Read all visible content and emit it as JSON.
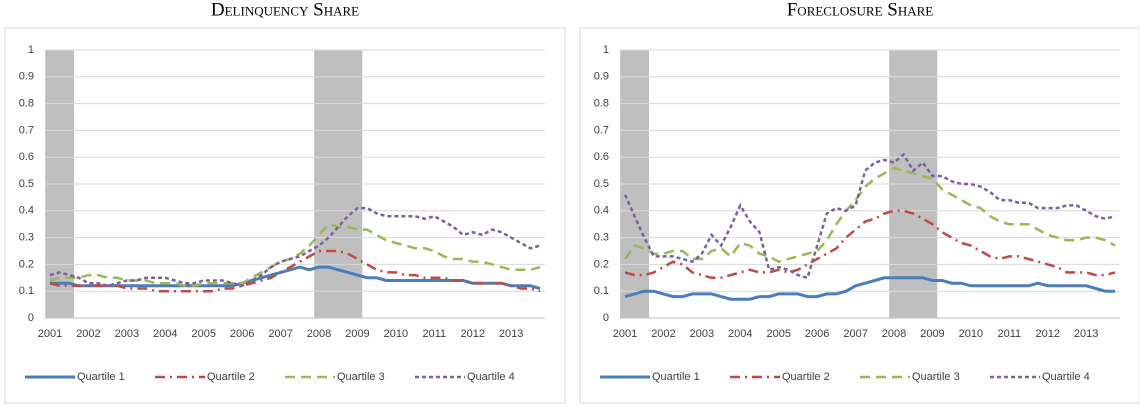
{
  "chart_data": [
    {
      "type": "line",
      "title": "Delinquency Share",
      "categories": [
        "2001",
        null,
        null,
        null,
        "2002",
        null,
        null,
        null,
        "2003",
        null,
        null,
        null,
        "2004",
        null,
        null,
        null,
        "2005",
        null,
        null,
        null,
        "2006",
        null,
        null,
        null,
        "2007",
        null,
        null,
        null,
        "2008",
        null,
        null,
        null,
        "2009",
        null,
        null,
        null,
        "2010",
        null,
        null,
        null,
        "2011",
        null,
        null,
        null,
        "2012",
        null,
        null,
        null,
        "2013",
        null,
        null,
        null
      ],
      "ylim": [
        0,
        1
      ],
      "yticks": [
        0,
        0.1,
        0.2,
        0.3,
        0.4,
        0.5,
        0.6,
        0.7,
        0.8,
        0.9,
        1
      ],
      "grid": true,
      "shaded": [
        {
          "start": 0,
          "end": 2
        },
        {
          "start": 28,
          "end": 32
        }
      ],
      "series": [
        {
          "name": "Quartile 1",
          "color": "#4a7ebb",
          "dash": "solid",
          "values": [
            0.13,
            0.13,
            0.13,
            0.12,
            0.12,
            0.12,
            0.12,
            0.12,
            0.12,
            0.12,
            0.12,
            0.12,
            0.12,
            0.12,
            0.12,
            0.12,
            0.12,
            0.12,
            0.12,
            0.12,
            0.13,
            0.14,
            0.15,
            0.16,
            0.17,
            0.18,
            0.19,
            0.18,
            0.19,
            0.19,
            0.18,
            0.17,
            0.16,
            0.15,
            0.15,
            0.14,
            0.14,
            0.14,
            0.14,
            0.14,
            0.14,
            0.14,
            0.14,
            0.14,
            0.13,
            0.13,
            0.13,
            0.13,
            0.12,
            0.12,
            0.12,
            0.11
          ]
        },
        {
          "name": "Quartile 2",
          "color": "#be4b48",
          "dash": "dashdot",
          "values": [
            0.13,
            0.12,
            0.12,
            0.12,
            0.12,
            0.12,
            0.12,
            0.12,
            0.11,
            0.11,
            0.11,
            0.1,
            0.1,
            0.1,
            0.1,
            0.1,
            0.1,
            0.1,
            0.11,
            0.11,
            0.12,
            0.13,
            0.14,
            0.15,
            0.17,
            0.19,
            0.21,
            0.23,
            0.25,
            0.25,
            0.25,
            0.24,
            0.22,
            0.2,
            0.18,
            0.17,
            0.17,
            0.16,
            0.16,
            0.15,
            0.15,
            0.15,
            0.14,
            0.14,
            0.13,
            0.13,
            0.13,
            0.13,
            0.12,
            0.11,
            0.11,
            0.1
          ]
        },
        {
          "name": "Quartile 3",
          "color": "#98b954",
          "dash": "longdash",
          "values": [
            0.14,
            0.15,
            0.15,
            0.15,
            0.16,
            0.16,
            0.15,
            0.15,
            0.14,
            0.14,
            0.14,
            0.13,
            0.13,
            0.13,
            0.12,
            0.12,
            0.13,
            0.13,
            0.13,
            0.13,
            0.13,
            0.15,
            0.17,
            0.19,
            0.21,
            0.22,
            0.24,
            0.27,
            0.31,
            0.35,
            0.34,
            0.34,
            0.33,
            0.33,
            0.31,
            0.29,
            0.28,
            0.27,
            0.26,
            0.26,
            0.25,
            0.23,
            0.22,
            0.22,
            0.21,
            0.21,
            0.2,
            0.19,
            0.18,
            0.18,
            0.18,
            0.19
          ]
        },
        {
          "name": "Quartile 4",
          "color": "#7d60a0",
          "dash": "shortdash",
          "values": [
            0.16,
            0.17,
            0.16,
            0.15,
            0.13,
            0.13,
            0.12,
            0.13,
            0.14,
            0.14,
            0.15,
            0.15,
            0.15,
            0.14,
            0.13,
            0.13,
            0.14,
            0.14,
            0.14,
            0.13,
            0.12,
            0.14,
            0.16,
            0.19,
            0.21,
            0.22,
            0.23,
            0.25,
            0.27,
            0.3,
            0.34,
            0.38,
            0.41,
            0.41,
            0.39,
            0.38,
            0.38,
            0.38,
            0.38,
            0.37,
            0.38,
            0.36,
            0.34,
            0.31,
            0.32,
            0.31,
            0.33,
            0.32,
            0.3,
            0.28,
            0.26,
            0.27
          ]
        }
      ]
    },
    {
      "type": "line",
      "title": "Foreclosure Share",
      "categories": [
        "2001",
        null,
        null,
        null,
        "2002",
        null,
        null,
        null,
        "2003",
        null,
        null,
        null,
        "2004",
        null,
        null,
        null,
        "2005",
        null,
        null,
        null,
        "2006",
        null,
        null,
        null,
        "2007",
        null,
        null,
        null,
        "2008",
        null,
        null,
        null,
        "2009",
        null,
        null,
        null,
        "2010",
        null,
        null,
        null,
        "2011",
        null,
        null,
        null,
        "2012",
        null,
        null,
        null,
        "2013",
        null,
        null,
        null
      ],
      "ylim": [
        0,
        1
      ],
      "yticks": [
        0,
        0.1,
        0.2,
        0.3,
        0.4,
        0.5,
        0.6,
        0.7,
        0.8,
        0.9,
        1
      ],
      "grid": true,
      "shaded": [
        {
          "start": 0,
          "end": 2
        },
        {
          "start": 28,
          "end": 32
        }
      ],
      "series": [
        {
          "name": "Quartile 1",
          "color": "#4a7ebb",
          "dash": "solid",
          "values": [
            0.08,
            0.09,
            0.1,
            0.1,
            0.09,
            0.08,
            0.08,
            0.09,
            0.09,
            0.09,
            0.08,
            0.07,
            0.07,
            0.07,
            0.08,
            0.08,
            0.09,
            0.09,
            0.09,
            0.08,
            0.08,
            0.09,
            0.09,
            0.1,
            0.12,
            0.13,
            0.14,
            0.15,
            0.15,
            0.15,
            0.15,
            0.15,
            0.14,
            0.14,
            0.13,
            0.13,
            0.12,
            0.12,
            0.12,
            0.12,
            0.12,
            0.12,
            0.12,
            0.13,
            0.12,
            0.12,
            0.12,
            0.12,
            0.12,
            0.11,
            0.1,
            0.1
          ]
        },
        {
          "name": "Quartile 2",
          "color": "#be4b48",
          "dash": "dashdot",
          "values": [
            0.17,
            0.16,
            0.16,
            0.17,
            0.19,
            0.21,
            0.2,
            0.17,
            0.16,
            0.15,
            0.15,
            0.16,
            0.17,
            0.18,
            0.17,
            0.17,
            0.18,
            0.17,
            0.18,
            0.2,
            0.22,
            0.24,
            0.26,
            0.3,
            0.33,
            0.36,
            0.37,
            0.39,
            0.4,
            0.4,
            0.39,
            0.37,
            0.35,
            0.32,
            0.3,
            0.28,
            0.27,
            0.25,
            0.23,
            0.22,
            0.23,
            0.23,
            0.22,
            0.21,
            0.2,
            0.19,
            0.17,
            0.17,
            0.17,
            0.16,
            0.16,
            0.17
          ]
        },
        {
          "name": "Quartile 3",
          "color": "#98b954",
          "dash": "longdash",
          "values": [
            0.22,
            0.27,
            0.26,
            0.24,
            0.24,
            0.25,
            0.25,
            0.22,
            0.22,
            0.25,
            0.26,
            0.23,
            0.28,
            0.27,
            0.24,
            0.23,
            0.21,
            0.22,
            0.23,
            0.24,
            0.25,
            0.29,
            0.35,
            0.4,
            0.44,
            0.49,
            0.52,
            0.54,
            0.56,
            0.55,
            0.54,
            0.53,
            0.52,
            0.48,
            0.46,
            0.44,
            0.42,
            0.41,
            0.38,
            0.36,
            0.35,
            0.35,
            0.35,
            0.33,
            0.31,
            0.3,
            0.29,
            0.29,
            0.3,
            0.3,
            0.29,
            0.27
          ]
        },
        {
          "name": "Quartile 4",
          "color": "#7d60a0",
          "dash": "shortdash",
          "values": [
            0.46,
            0.38,
            0.3,
            0.23,
            0.23,
            0.23,
            0.22,
            0.21,
            0.24,
            0.31,
            0.27,
            0.34,
            0.42,
            0.36,
            0.32,
            0.18,
            0.19,
            0.18,
            0.16,
            0.15,
            0.27,
            0.39,
            0.41,
            0.4,
            0.42,
            0.55,
            0.58,
            0.59,
            0.58,
            0.61,
            0.55,
            0.58,
            0.53,
            0.53,
            0.51,
            0.5,
            0.5,
            0.49,
            0.47,
            0.44,
            0.44,
            0.43,
            0.43,
            0.41,
            0.41,
            0.41,
            0.42,
            0.42,
            0.4,
            0.38,
            0.37,
            0.38
          ]
        }
      ]
    }
  ]
}
